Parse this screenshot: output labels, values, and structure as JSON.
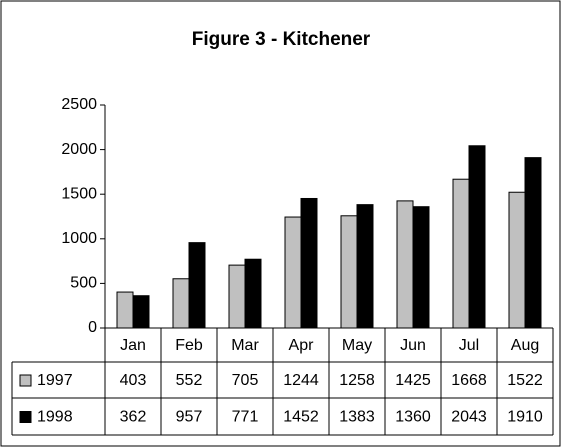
{
  "chart_data": {
    "type": "bar",
    "title": "Figure 3 - Kitchener",
    "categories": [
      "Jan",
      "Feb",
      "Mar",
      "Apr",
      "May",
      "Jun",
      "Jul",
      "Aug"
    ],
    "series": [
      {
        "name": "1997",
        "color": "#c0c0c0",
        "values": [
          403,
          552,
          705,
          1244,
          1258,
          1425,
          1668,
          1522
        ]
      },
      {
        "name": "1998",
        "color": "#000000",
        "values": [
          362,
          957,
          771,
          1452,
          1383,
          1360,
          2043,
          1910
        ]
      }
    ],
    "ylim": [
      0,
      2500
    ],
    "yticks": [
      0,
      500,
      1000,
      1500,
      2000,
      2500
    ],
    "grid": false,
    "data_table": true
  }
}
